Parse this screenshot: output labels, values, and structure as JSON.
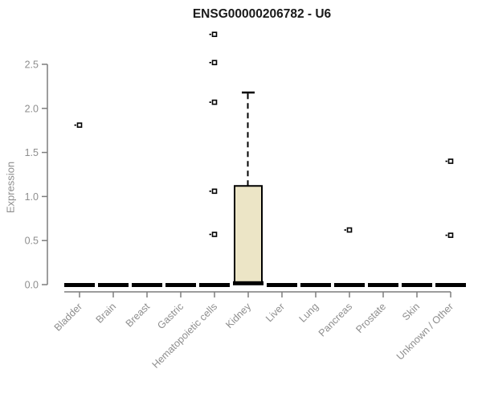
{
  "chart_data": {
    "type": "boxplot",
    "title": "ENSG00000206782 - U6",
    "xlabel": "",
    "ylabel": "Expression",
    "ylim": [
      0,
      2.9
    ],
    "yticks": [
      0.0,
      0.5,
      1.0,
      1.5,
      2.0,
      2.5
    ],
    "grid": false,
    "legend": "none",
    "categories": [
      "Bladder",
      "Brain",
      "Breast",
      "Gastric",
      "Hematopoietic cells",
      "Kidney",
      "Liver",
      "Lung",
      "Pancreas",
      "Prostate",
      "Skin",
      "Unknown / Other"
    ],
    "boxes": [
      {
        "category": "Bladder",
        "whisker_low": 0,
        "q1": 0,
        "median": 0,
        "q3": 0,
        "whisker_high": 0,
        "outliers": [
          1.81
        ]
      },
      {
        "category": "Brain",
        "whisker_low": 0,
        "q1": 0,
        "median": 0,
        "q3": 0,
        "whisker_high": 0,
        "outliers": []
      },
      {
        "category": "Breast",
        "whisker_low": 0,
        "q1": 0,
        "median": 0,
        "q3": 0,
        "whisker_high": 0,
        "outliers": []
      },
      {
        "category": "Gastric",
        "whisker_low": 0,
        "q1": 0,
        "median": 0,
        "q3": 0,
        "whisker_high": 0,
        "outliers": []
      },
      {
        "category": "Hematopoietic cells",
        "whisker_low": 0,
        "q1": 0,
        "median": 0,
        "q3": 0,
        "whisker_high": 0,
        "outliers": [
          0.57,
          1.06,
          2.07,
          2.52,
          2.84
        ]
      },
      {
        "category": "Kidney",
        "whisker_low": 0.02,
        "q1": 0.02,
        "median": 0.02,
        "q3": 1.12,
        "whisker_high": 2.18,
        "outliers": []
      },
      {
        "category": "Liver",
        "whisker_low": 0,
        "q1": 0,
        "median": 0,
        "q3": 0,
        "whisker_high": 0,
        "outliers": []
      },
      {
        "category": "Lung",
        "whisker_low": 0,
        "q1": 0,
        "median": 0,
        "q3": 0,
        "whisker_high": 0,
        "outliers": []
      },
      {
        "category": "Pancreas",
        "whisker_low": 0,
        "q1": 0,
        "median": 0,
        "q3": 0,
        "whisker_high": 0,
        "outliers": [
          0.62
        ]
      },
      {
        "category": "Prostate",
        "whisker_low": 0,
        "q1": 0,
        "median": 0,
        "q3": 0,
        "whisker_high": 0,
        "outliers": []
      },
      {
        "category": "Skin",
        "whisker_low": 0,
        "q1": 0,
        "median": 0,
        "q3": 0,
        "whisker_high": 0,
        "outliers": []
      },
      {
        "category": "Unknown / Other",
        "whisker_low": 0,
        "q1": 0,
        "median": 0,
        "q3": 0,
        "whisker_high": 0,
        "outliers": [
          0.56,
          1.4
        ]
      }
    ],
    "colors": {
      "box_fill": "#ECE5C6",
      "box_border": "#000000",
      "median": "#000000",
      "whisker": "#000000",
      "outlier_fill": "#ffffff",
      "outlier_border": "#000000",
      "axis": "#7d7d7d",
      "tick_label": "#8e8e8e",
      "title": "#1a1a1a"
    }
  }
}
